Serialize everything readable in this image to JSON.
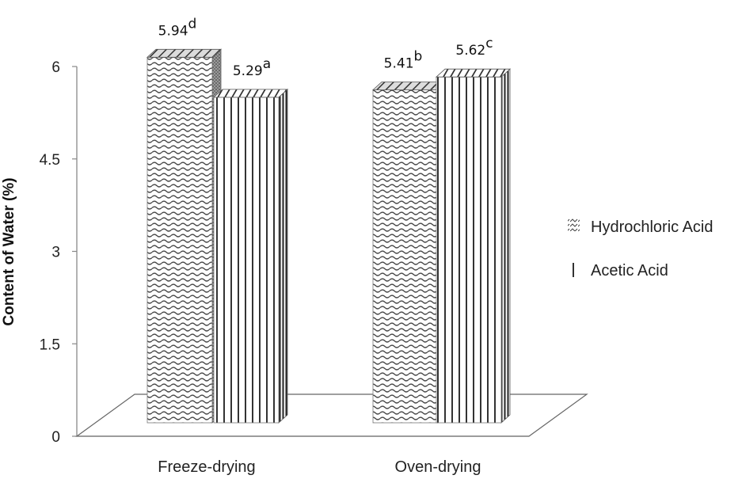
{
  "chart_data": {
    "type": "bar",
    "title": "",
    "xlabel": "",
    "ylabel": "Content of Water (%)",
    "ylim": [
      0,
      6
    ],
    "yticks": [
      "0",
      "1.5",
      "3",
      "4.5",
      "6"
    ],
    "categories": [
      "Freeze-drying",
      "Oven-drying"
    ],
    "series": [
      {
        "name": "Hydrochloric Acid",
        "values": [
          5.94,
          5.41
        ],
        "value_labels": [
          "5.94",
          "5.41"
        ],
        "letters": [
          "d",
          "b"
        ],
        "pattern": "wave"
      },
      {
        "name": "Acetic Acid",
        "values": [
          5.29,
          5.62
        ],
        "value_labels": [
          "5.29",
          "5.62"
        ],
        "letters": [
          "a",
          "c"
        ],
        "pattern": "vertical-lines"
      }
    ],
    "legend_position": "right",
    "grid": false,
    "style": "3d-column"
  }
}
